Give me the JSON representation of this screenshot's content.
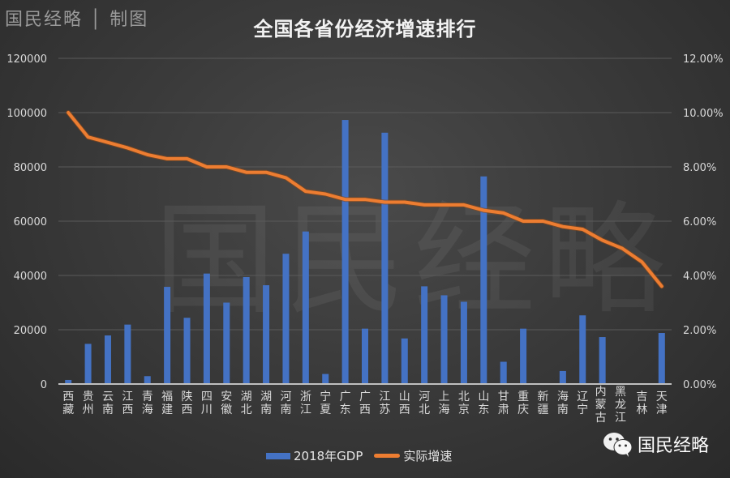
{
  "header": {
    "credit": "国民经略 │ 制图",
    "title": "全国各省份经济增速排行"
  },
  "watermark": "国民经略",
  "brand": {
    "icon": "wechat-icon",
    "label": "国民经略"
  },
  "legend": {
    "bar_label": "2018年GDP",
    "line_label": "实际增速"
  },
  "colors": {
    "bar": "#4472c4",
    "line": "#ed7d31",
    "grid": "#5a5a5a",
    "axis_text": "#d9d9d9"
  },
  "chart_data": {
    "type": "bar",
    "combo": "bar+line (dual axis)",
    "title": "全国各省份经济增速排行",
    "xlabel": "",
    "ylabel": "",
    "y2label": "",
    "ylim": [
      0,
      120000
    ],
    "y2lim": [
      0,
      0.12
    ],
    "yticks": [
      "0",
      "20000",
      "40000",
      "60000",
      "80000",
      "100000",
      "120000"
    ],
    "y2ticks": [
      "0.00%",
      "2.00%",
      "4.00%",
      "6.00%",
      "8.00%",
      "10.00%",
      "12.00%"
    ],
    "grid": true,
    "legend_position": "bottom",
    "categories": [
      "西藏",
      "贵州",
      "云南",
      "江西",
      "青海",
      "福建",
      "陕西",
      "四川",
      "安徽",
      "湖北",
      "湖南",
      "河南",
      "浙江",
      "宁夏",
      "广东",
      "广西",
      "江苏",
      "山西",
      "河北",
      "上海",
      "北京",
      "山东",
      "甘肃",
      "重庆",
      "新疆",
      "海南",
      "辽宁",
      "内蒙古",
      "黑龙江",
      "吉林",
      "天津"
    ],
    "series": [
      {
        "name": "2018年GDP",
        "type": "bar",
        "axis": "left",
        "values": [
          1500,
          14800,
          17900,
          21900,
          2900,
          35800,
          24400,
          40700,
          30000,
          39400,
          36400,
          48000,
          56200,
          3700,
          97300,
          20400,
          92600,
          16800,
          36000,
          32700,
          30300,
          76500,
          8200,
          20400,
          0,
          4800,
          25300,
          17300,
          0,
          0,
          18800
        ]
      },
      {
        "name": "实际增速",
        "type": "line",
        "axis": "right",
        "values": [
          0.1,
          0.091,
          0.089,
          0.087,
          0.0845,
          0.083,
          0.083,
          0.08,
          0.08,
          0.078,
          0.078,
          0.076,
          0.071,
          0.07,
          0.068,
          0.068,
          0.067,
          0.067,
          0.066,
          0.066,
          0.066,
          0.064,
          0.063,
          0.06,
          0.06,
          0.058,
          0.057,
          0.053,
          0.05,
          0.045,
          0.036
        ]
      }
    ]
  }
}
